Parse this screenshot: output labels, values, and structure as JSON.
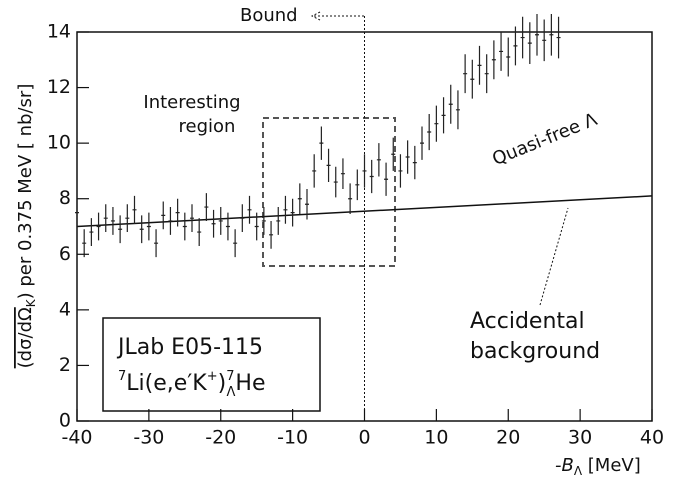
{
  "chart_data": {
    "type": "errorbar",
    "x": [
      -40,
      -39,
      -38,
      -37,
      -36,
      -35,
      -34,
      -33,
      -32,
      -31,
      -30,
      -29,
      -28,
      -27,
      -26,
      -25,
      -24,
      -23,
      -22,
      -21,
      -20,
      -19,
      -18,
      -17,
      -16,
      -15,
      -14,
      -13,
      -12,
      -11,
      -10,
      -9,
      -8,
      -7,
      -6,
      -5,
      -4,
      -3,
      -2,
      -1,
      0,
      1,
      2,
      3,
      4,
      5,
      6,
      7,
      8,
      9,
      10,
      11,
      12,
      13,
      14,
      15,
      16,
      17,
      18,
      19,
      20,
      21,
      22,
      23,
      24,
      25,
      26,
      27
    ],
    "values": [
      7.5,
      6.4,
      6.8,
      7.0,
      7.3,
      7.2,
      6.9,
      7.3,
      7.6,
      6.9,
      7.0,
      6.4,
      7.4,
      7.2,
      7.5,
      7.0,
      7.3,
      6.8,
      7.7,
      7.1,
      7.2,
      7.0,
      6.4,
      7.3,
      7.6,
      7.0,
      7.2,
      6.7,
      7.2,
      7.6,
      7.5,
      8.0,
      7.8,
      9.0,
      10.0,
      9.2,
      8.6,
      8.9,
      8.0,
      8.5,
      9.0,
      8.8,
      9.4,
      8.7,
      9.6,
      9.0,
      9.5,
      9.3,
      10.0,
      10.4,
      10.7,
      11.0,
      11.4,
      11.2,
      12.5,
      12.3,
      12.8,
      12.5,
      13.0,
      13.3,
      13.1,
      13.5,
      13.8,
      13.6,
      13.9,
      13.7,
      13.9,
      13.8
    ],
    "errors": [
      0.5,
      0.5,
      0.5,
      0.5,
      0.5,
      0.5,
      0.5,
      0.5,
      0.5,
      0.5,
      0.5,
      0.5,
      0.5,
      0.5,
      0.5,
      0.5,
      0.5,
      0.5,
      0.5,
      0.5,
      0.5,
      0.5,
      0.5,
      0.5,
      0.5,
      0.5,
      0.5,
      0.5,
      0.5,
      0.5,
      0.5,
      0.55,
      0.55,
      0.6,
      0.6,
      0.6,
      0.55,
      0.55,
      0.55,
      0.55,
      0.6,
      0.6,
      0.6,
      0.6,
      0.6,
      0.6,
      0.6,
      0.6,
      0.6,
      0.65,
      0.65,
      0.65,
      0.7,
      0.7,
      0.7,
      0.7,
      0.7,
      0.7,
      0.7,
      0.7,
      0.7,
      0.7,
      0.75,
      0.75,
      0.75,
      0.75,
      0.75,
      0.75
    ],
    "color": "#222222",
    "background": {
      "x": [
        -40,
        40
      ],
      "values": [
        7.0,
        8.1
      ],
      "color": "#111111"
    },
    "xlim": [
      -40,
      40
    ],
    "ylim": [
      0,
      14
    ],
    "xticks": [
      -40,
      -30,
      -20,
      -10,
      0,
      10,
      20,
      30,
      40
    ],
    "yticks": [
      0,
      2,
      4,
      6,
      8,
      10,
      12,
      14
    ],
    "xlabel": [
      "-B",
      "Λ",
      " [MeV]"
    ],
    "ylabel": [
      "(dσ/dΩ",
      "K",
      ")  per 0.375 MeV [ nb/sr]"
    ],
    "annotations": {
      "bound": "Bound",
      "region": [
        "Interesting",
        "region"
      ],
      "quasi_free": "Quasi-free Λ",
      "accidental": [
        "Accidental",
        "background"
      ]
    },
    "box": {
      "line1": "JLab E05-115",
      "reaction": [
        "7",
        "Li(e,e′K",
        "+",
        ")",
        "7",
        "Λ",
        "He"
      ]
    }
  }
}
